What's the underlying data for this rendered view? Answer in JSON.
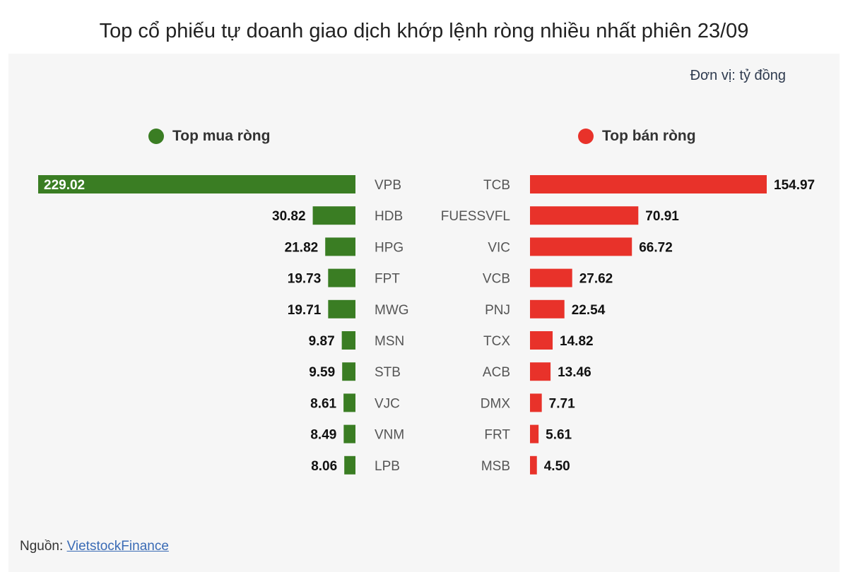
{
  "title": "Top cổ phiếu tự doanh giao dịch khớp lệnh ròng nhiều nhất phiên 23/09",
  "unit": "Đơn vị: tỷ đồng",
  "legend": {
    "buy_label": "Top mua ròng",
    "sell_label": "Top bán ròng"
  },
  "source": {
    "label": "Nguồn:",
    "link": "VietstockFinance"
  },
  "colors": {
    "buy": "#3a7d23",
    "sell": "#e8322a"
  },
  "chart_data": [
    {
      "type": "bar",
      "orientation": "horizontal",
      "name": "Top mua ròng",
      "categories": [
        "VPB",
        "HDB",
        "HPG",
        "FPT",
        "MWG",
        "MSN",
        "STB",
        "VJC",
        "VNM",
        "LPB"
      ],
      "values": [
        229.02,
        30.82,
        21.82,
        19.73,
        19.71,
        9.87,
        9.59,
        8.61,
        8.49,
        8.06
      ],
      "value_labels": [
        "229.02",
        "30.82",
        "21.82",
        "19.73",
        "19.71",
        "9.87",
        "9.59",
        "8.61",
        "8.49",
        "8.06"
      ]
    },
    {
      "type": "bar",
      "orientation": "horizontal",
      "name": "Top bán ròng",
      "categories": [
        "TCB",
        "FUESSVFL",
        "VIC",
        "VCB",
        "PNJ",
        "TCX",
        "ACB",
        "DMX",
        "FRT",
        "MSB"
      ],
      "values": [
        154.97,
        70.91,
        66.72,
        27.62,
        22.54,
        14.82,
        13.46,
        7.71,
        5.61,
        4.5
      ],
      "value_labels": [
        "154.97",
        "70.91",
        "66.72",
        "27.62",
        "22.54",
        "14.82",
        "13.46",
        "7.71",
        "5.61",
        "4.50"
      ]
    }
  ]
}
